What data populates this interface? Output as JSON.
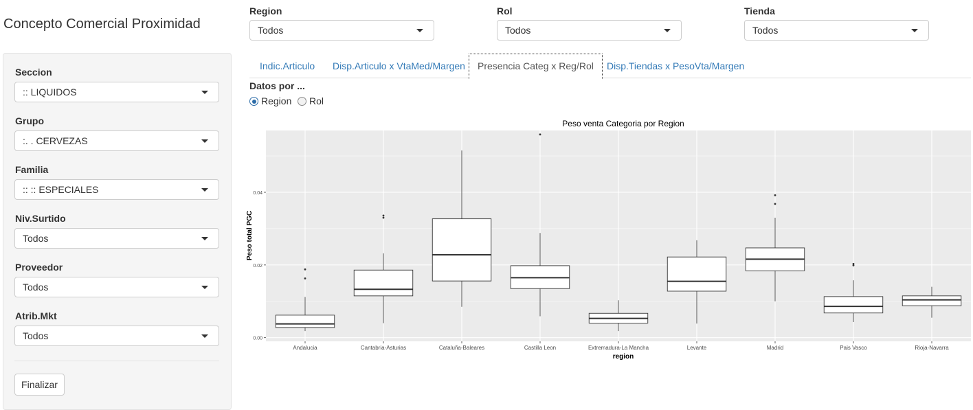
{
  "app": {
    "title": "Concepto Comercial Proximidad"
  },
  "sidebar": {
    "filters": [
      {
        "label": "Seccion",
        "value": ":: LIQUIDOS"
      },
      {
        "label": "Grupo",
        "value": ":. . CERVEZAS"
      },
      {
        "label": "Familia",
        "value": ":: :: ESPECIALES"
      },
      {
        "label": "Niv.Surtido",
        "value": "Todos"
      },
      {
        "label": "Proveedor",
        "value": "Todos"
      },
      {
        "label": "Atrib.Mkt",
        "value": "Todos"
      }
    ],
    "finalize_label": "Finalizar"
  },
  "top_filters": [
    {
      "label": "Region",
      "value": "Todos"
    },
    {
      "label": "Rol",
      "value": "Todos"
    },
    {
      "label": "Tienda",
      "value": "Todos"
    }
  ],
  "tabs": [
    {
      "label": "Indic.Articulo",
      "active": false
    },
    {
      "label": "Disp.Articulo x VtaMed/Margen",
      "active": false
    },
    {
      "label": "Presencia Categ x Reg/Rol",
      "active": true
    },
    {
      "label": "Disp.Tiendas x PesoVta/Margen",
      "active": false
    }
  ],
  "datos": {
    "label": "Datos por ...",
    "options": [
      {
        "label": "Region",
        "checked": true
      },
      {
        "label": "Rol",
        "checked": false
      }
    ]
  },
  "chart_data": {
    "type": "boxplot",
    "title": "Peso venta Categoria por Region",
    "xlabel": "region",
    "ylabel": "Peso total PGC",
    "ylim": [
      -0.001,
      0.057
    ],
    "yticks": [
      "0.00",
      "0.02",
      "0.04"
    ],
    "grid": true,
    "panel_background": "#ebebeb",
    "categories": [
      "Andalucia",
      "Cantabria-Asturias",
      "Cataluña-Baleares",
      "Castilla Leon",
      "Extremadura-La Mancha",
      "Levante",
      "Madrid",
      "Pais Vasco",
      "Rioja-Navarra"
    ],
    "boxes": [
      {
        "min": 0.0018,
        "q1": 0.0028,
        "median": 0.0038,
        "q3": 0.0062,
        "max": 0.0112,
        "outliers": [
          0.0163,
          0.0188
        ]
      },
      {
        "min": 0.004,
        "q1": 0.0115,
        "median": 0.0133,
        "q3": 0.0186,
        "max": 0.0232,
        "outliers": [
          0.033,
          0.0336
        ]
      },
      {
        "min": 0.0085,
        "q1": 0.0156,
        "median": 0.0228,
        "q3": 0.0327,
        "max": 0.0515,
        "outliers": []
      },
      {
        "min": 0.0059,
        "q1": 0.0135,
        "median": 0.0165,
        "q3": 0.0198,
        "max": 0.0288,
        "outliers": [
          0.0559
        ]
      },
      {
        "min": 0.0018,
        "q1": 0.004,
        "median": 0.0053,
        "q3": 0.0067,
        "max": 0.0103,
        "outliers": []
      },
      {
        "min": 0.0039,
        "q1": 0.0128,
        "median": 0.0155,
        "q3": 0.0222,
        "max": 0.0268,
        "outliers": []
      },
      {
        "min": 0.01,
        "q1": 0.0184,
        "median": 0.0216,
        "q3": 0.0247,
        "max": 0.033,
        "outliers": [
          0.0368,
          0.0392
        ]
      },
      {
        "min": 0.0043,
        "q1": 0.0068,
        "median": 0.0086,
        "q3": 0.0113,
        "max": 0.0158,
        "outliers": [
          0.0199,
          0.0203
        ]
      },
      {
        "min": 0.0055,
        "q1": 0.0088,
        "median": 0.0104,
        "q3": 0.0115,
        "max": 0.014,
        "outliers": []
      }
    ]
  }
}
